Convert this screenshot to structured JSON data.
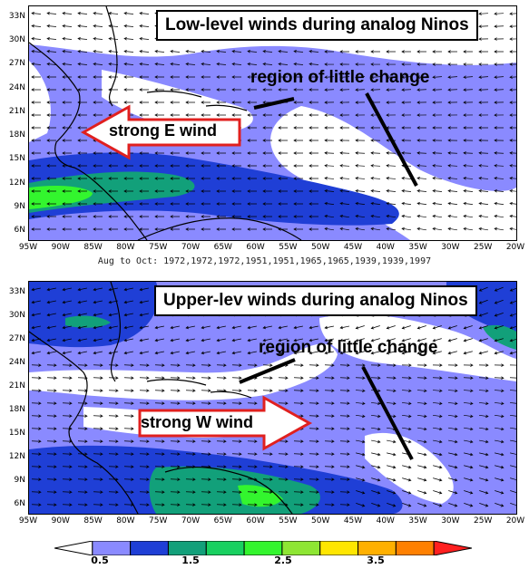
{
  "top_panel": {
    "title": "Low-level winds during analog Ninos",
    "annotation": "region of little change",
    "arrow_label": "strong E wind",
    "caption": "Aug to Oct: 1972,1972,1972,1951,1951,1965,1965,1939,1939,1997"
  },
  "bottom_panel": {
    "title": "Upper-lev winds during analog Ninos",
    "annotation": "region of little change",
    "arrow_label": "strong W wind"
  },
  "axes": {
    "top_lat_ticks": [
      "33N",
      "30N",
      "27N",
      "24N",
      "21N",
      "18N",
      "15N",
      "12N",
      "9N",
      "6N"
    ],
    "bottom_lat_ticks": [
      "33N",
      "30N",
      "27N",
      "24N",
      "21N",
      "18N",
      "15N",
      "12N",
      "9N",
      "6N"
    ],
    "lon_ticks": [
      "95W",
      "90W",
      "85W",
      "80W",
      "75W",
      "70W",
      "65W",
      "60W",
      "55W",
      "50W",
      "45W",
      "40W",
      "35W",
      "30W",
      "25W",
      "20W"
    ]
  },
  "colorbar": {
    "labels": [
      "0.5",
      "1.5",
      "2.5",
      "3.5"
    ],
    "colors": [
      "#ffffff",
      "#8a8aff",
      "#1f3fd6",
      "#12a07a",
      "#18d060",
      "#33f52e",
      "#8ee633",
      "#ffe600",
      "#ffb000",
      "#ff8000",
      "#ff2020"
    ]
  },
  "colors": {
    "weak": "#8a8aff",
    "moderate": "#1f3fd6",
    "strong": "#12a07a",
    "strongest": "#33f52e",
    "arrow_outline": "#e0201f",
    "land_line": "#000000"
  }
}
